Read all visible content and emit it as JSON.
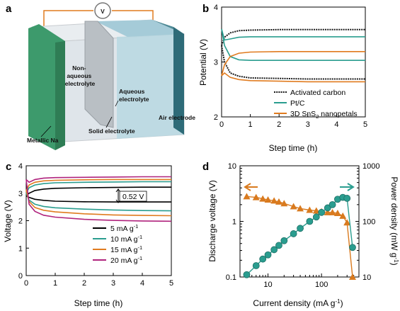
{
  "panels": {
    "a": {
      "label": "a",
      "voltmeter": "V",
      "labels": {
        "non_aqueous": [
          "Non-",
          "aqueous",
          "electrolyte"
        ],
        "aqueous": [
          "Aqueous",
          "electrolyte"
        ],
        "air_electrode": "Air electrode",
        "solid_electrolyte": "Solid electrolyte",
        "metallic_na": "Metallic Na"
      }
    }
  },
  "chart_data": [
    {
      "panel": "b",
      "type": "line",
      "xlabel": "Step time (h)",
      "ylabel": "Potential (V)",
      "xlim": [
        0,
        5
      ],
      "ylim": [
        2,
        4
      ],
      "xticks": [
        "0",
        "1",
        "2",
        "3",
        "4",
        "5"
      ],
      "yticks": [
        "2",
        "3",
        "4"
      ],
      "legend_position": "lower-right",
      "series": [
        {
          "name": "Activated carbon",
          "color": "#1a1a1a",
          "style": "dotted-line",
          "values_x": [
            0,
            0.1,
            0.3,
            0.6,
            1,
            2,
            3,
            4,
            5
          ],
          "charge": [
            3.3,
            3.45,
            3.53,
            3.57,
            3.58,
            3.59,
            3.59,
            3.59,
            3.59
          ],
          "discharge": [
            3.3,
            3.0,
            2.8,
            2.74,
            2.71,
            2.7,
            2.69,
            2.69,
            2.69
          ]
        },
        {
          "name": "Pt/C",
          "color": "#2a9d8f",
          "style": "line",
          "values_x": [
            0,
            0.1,
            0.3,
            0.6,
            1,
            2,
            3,
            4,
            5
          ],
          "charge": [
            3.6,
            3.4,
            3.42,
            3.45,
            3.46,
            3.46,
            3.46,
            3.46,
            3.46
          ],
          "discharge": [
            3.6,
            3.3,
            3.1,
            3.04,
            3.03,
            3.03,
            3.03,
            3.03,
            3.03
          ]
        },
        {
          "name": "3D SnS2 nanopetals",
          "name_parts": [
            "3D SnS",
            "2",
            " nanopetals"
          ],
          "color": "#e07b1f",
          "style": "line",
          "values_x": [
            0,
            0.1,
            0.3,
            0.6,
            1,
            2,
            3,
            4,
            5
          ],
          "charge": [
            2.75,
            2.95,
            3.1,
            3.16,
            3.18,
            3.19,
            3.19,
            3.19,
            3.19
          ],
          "discharge": [
            2.75,
            2.8,
            2.72,
            2.68,
            2.66,
            2.65,
            2.64,
            2.64,
            2.64
          ]
        }
      ]
    },
    {
      "panel": "c",
      "type": "line",
      "xlabel": "Step time (h)",
      "ylabel": "Voltage (V)",
      "xlim": [
        0,
        5
      ],
      "ylim": [
        0,
        4
      ],
      "xticks": [
        "0",
        "1",
        "2",
        "3",
        "4",
        "5"
      ],
      "yticks": [
        "0",
        "1",
        "2",
        "3",
        "4"
      ],
      "legend_position": "lower-right",
      "annotation": "0.52 V",
      "series": [
        {
          "name": "5 mA g⁻¹",
          "name_parts": [
            "5 mA g",
            "-1"
          ],
          "color": "#000000",
          "values_x": [
            0,
            0.1,
            0.3,
            0.6,
            1,
            2,
            3,
            4,
            5
          ],
          "charge": [
            2.9,
            3.0,
            3.1,
            3.15,
            3.18,
            3.2,
            3.21,
            3.22,
            3.22
          ],
          "discharge": [
            2.9,
            2.85,
            2.78,
            2.74,
            2.71,
            2.69,
            2.68,
            2.68,
            2.68
          ]
        },
        {
          "name": "10 mA g⁻¹",
          "name_parts": [
            "10 mA g",
            "-1"
          ],
          "color": "#2a9d8f",
          "values_x": [
            0,
            0.1,
            0.3,
            0.6,
            1,
            2,
            3,
            4,
            5
          ],
          "charge": [
            3.0,
            3.2,
            3.3,
            3.35,
            3.38,
            3.4,
            3.41,
            3.42,
            3.42
          ],
          "discharge": [
            3.0,
            2.75,
            2.6,
            2.52,
            2.47,
            2.42,
            2.39,
            2.37,
            2.36
          ]
        },
        {
          "name": "15 mA g⁻¹",
          "name_parts": [
            "15 mA g",
            "-1"
          ],
          "color": "#e07b1f",
          "values_x": [
            0,
            0.1,
            0.3,
            0.6,
            1,
            2,
            3,
            4,
            5
          ],
          "charge": [
            3.1,
            3.3,
            3.4,
            3.45,
            3.47,
            3.49,
            3.5,
            3.5,
            3.5
          ],
          "discharge": [
            3.1,
            2.7,
            2.48,
            2.38,
            2.32,
            2.25,
            2.21,
            2.19,
            2.18
          ]
        },
        {
          "name": "20 mA g⁻¹",
          "name_parts": [
            "20 mA g",
            "-1"
          ],
          "color": "#b0237d",
          "values_x": [
            0,
            0.1,
            0.3,
            0.6,
            1,
            2,
            3,
            4,
            5
          ],
          "charge": [
            3.5,
            3.4,
            3.5,
            3.55,
            3.57,
            3.58,
            3.59,
            3.6,
            3.6
          ],
          "discharge": [
            3.5,
            2.6,
            2.34,
            2.2,
            2.13,
            2.05,
            2.01,
            1.99,
            1.98
          ]
        }
      ]
    },
    {
      "panel": "d",
      "type": "scatter",
      "xlabel": "Current density (mA g⁻¹)",
      "xlabel_parts": [
        "Current density (mA g",
        "-1",
        ")"
      ],
      "ylabel": "Discharge voltage (V)",
      "y2label": "Power density (mW g⁻¹)",
      "y2label_parts": [
        "Power density (mW g",
        "-1",
        ")"
      ],
      "xscale": "log",
      "yscale": "log",
      "y2scale": "log",
      "xlim": [
        3,
        500
      ],
      "ylim": [
        0.1,
        10
      ],
      "y2lim": [
        10,
        1000
      ],
      "xticks": [
        "10",
        "100"
      ],
      "yticks": [
        "0.1",
        "1",
        "10"
      ],
      "y2ticks": [
        "10",
        "100",
        "1000"
      ],
      "series": [
        {
          "name": "discharge voltage",
          "axis": "left",
          "marker": "triangle",
          "color": "#d97a1e",
          "x": [
            4,
            6,
            8,
            10,
            13,
            16,
            20,
            30,
            40,
            60,
            80,
            100,
            130,
            160,
            200,
            250,
            300,
            380
          ],
          "y": [
            2.8,
            2.7,
            2.55,
            2.45,
            2.35,
            2.25,
            2.1,
            1.85,
            1.7,
            1.6,
            1.55,
            1.5,
            1.45,
            1.45,
            1.4,
            1.25,
            0.95,
            0.1
          ]
        },
        {
          "name": "power density",
          "axis": "right",
          "marker": "circle",
          "color": "#2a9d8f",
          "x": [
            4,
            6,
            8,
            10,
            13,
            16,
            20,
            30,
            40,
            60,
            80,
            100,
            130,
            160,
            200,
            250,
            300,
            380
          ],
          "y": [
            11,
            16,
            21,
            25,
            31,
            37,
            45,
            60,
            75,
            100,
            120,
            145,
            175,
            200,
            250,
            270,
            260,
            34
          ]
        }
      ]
    }
  ]
}
